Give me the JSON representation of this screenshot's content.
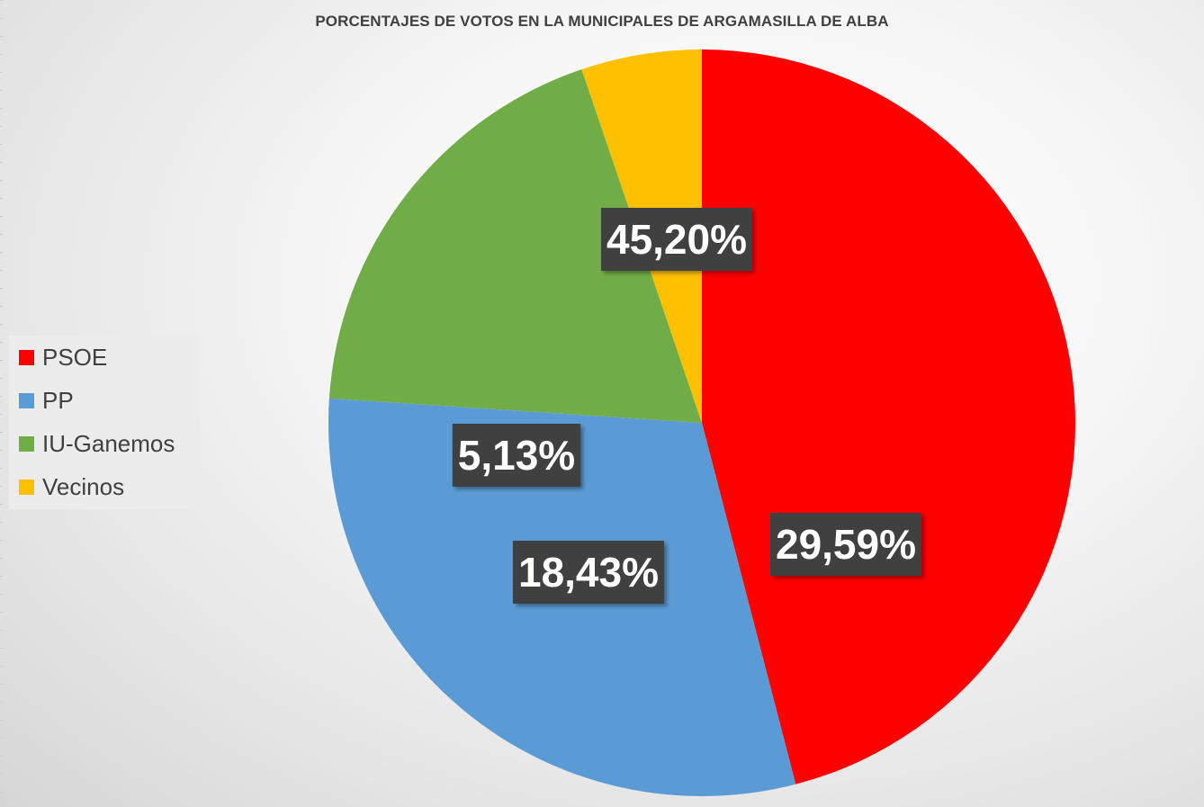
{
  "chart_data": {
    "type": "pie",
    "title": "PORCENTAJES DE VOTOS EN LA MUNICIPALES  DE ARGAMASILLA DE ALBA",
    "categories": [
      "PSOE",
      "PP",
      "IU-Ganemos",
      "Vecinos"
    ],
    "values": [
      45.2,
      29.59,
      18.43,
      5.13
    ],
    "data_labels": [
      "45,20%",
      "29,59%",
      "18,43%",
      "5,13%"
    ],
    "colors": [
      "#ff0000",
      "#5b9bd5",
      "#70ad47",
      "#ffc000"
    ],
    "legend_position": "left",
    "start_angle_deg": 270,
    "direction": "clockwise"
  }
}
